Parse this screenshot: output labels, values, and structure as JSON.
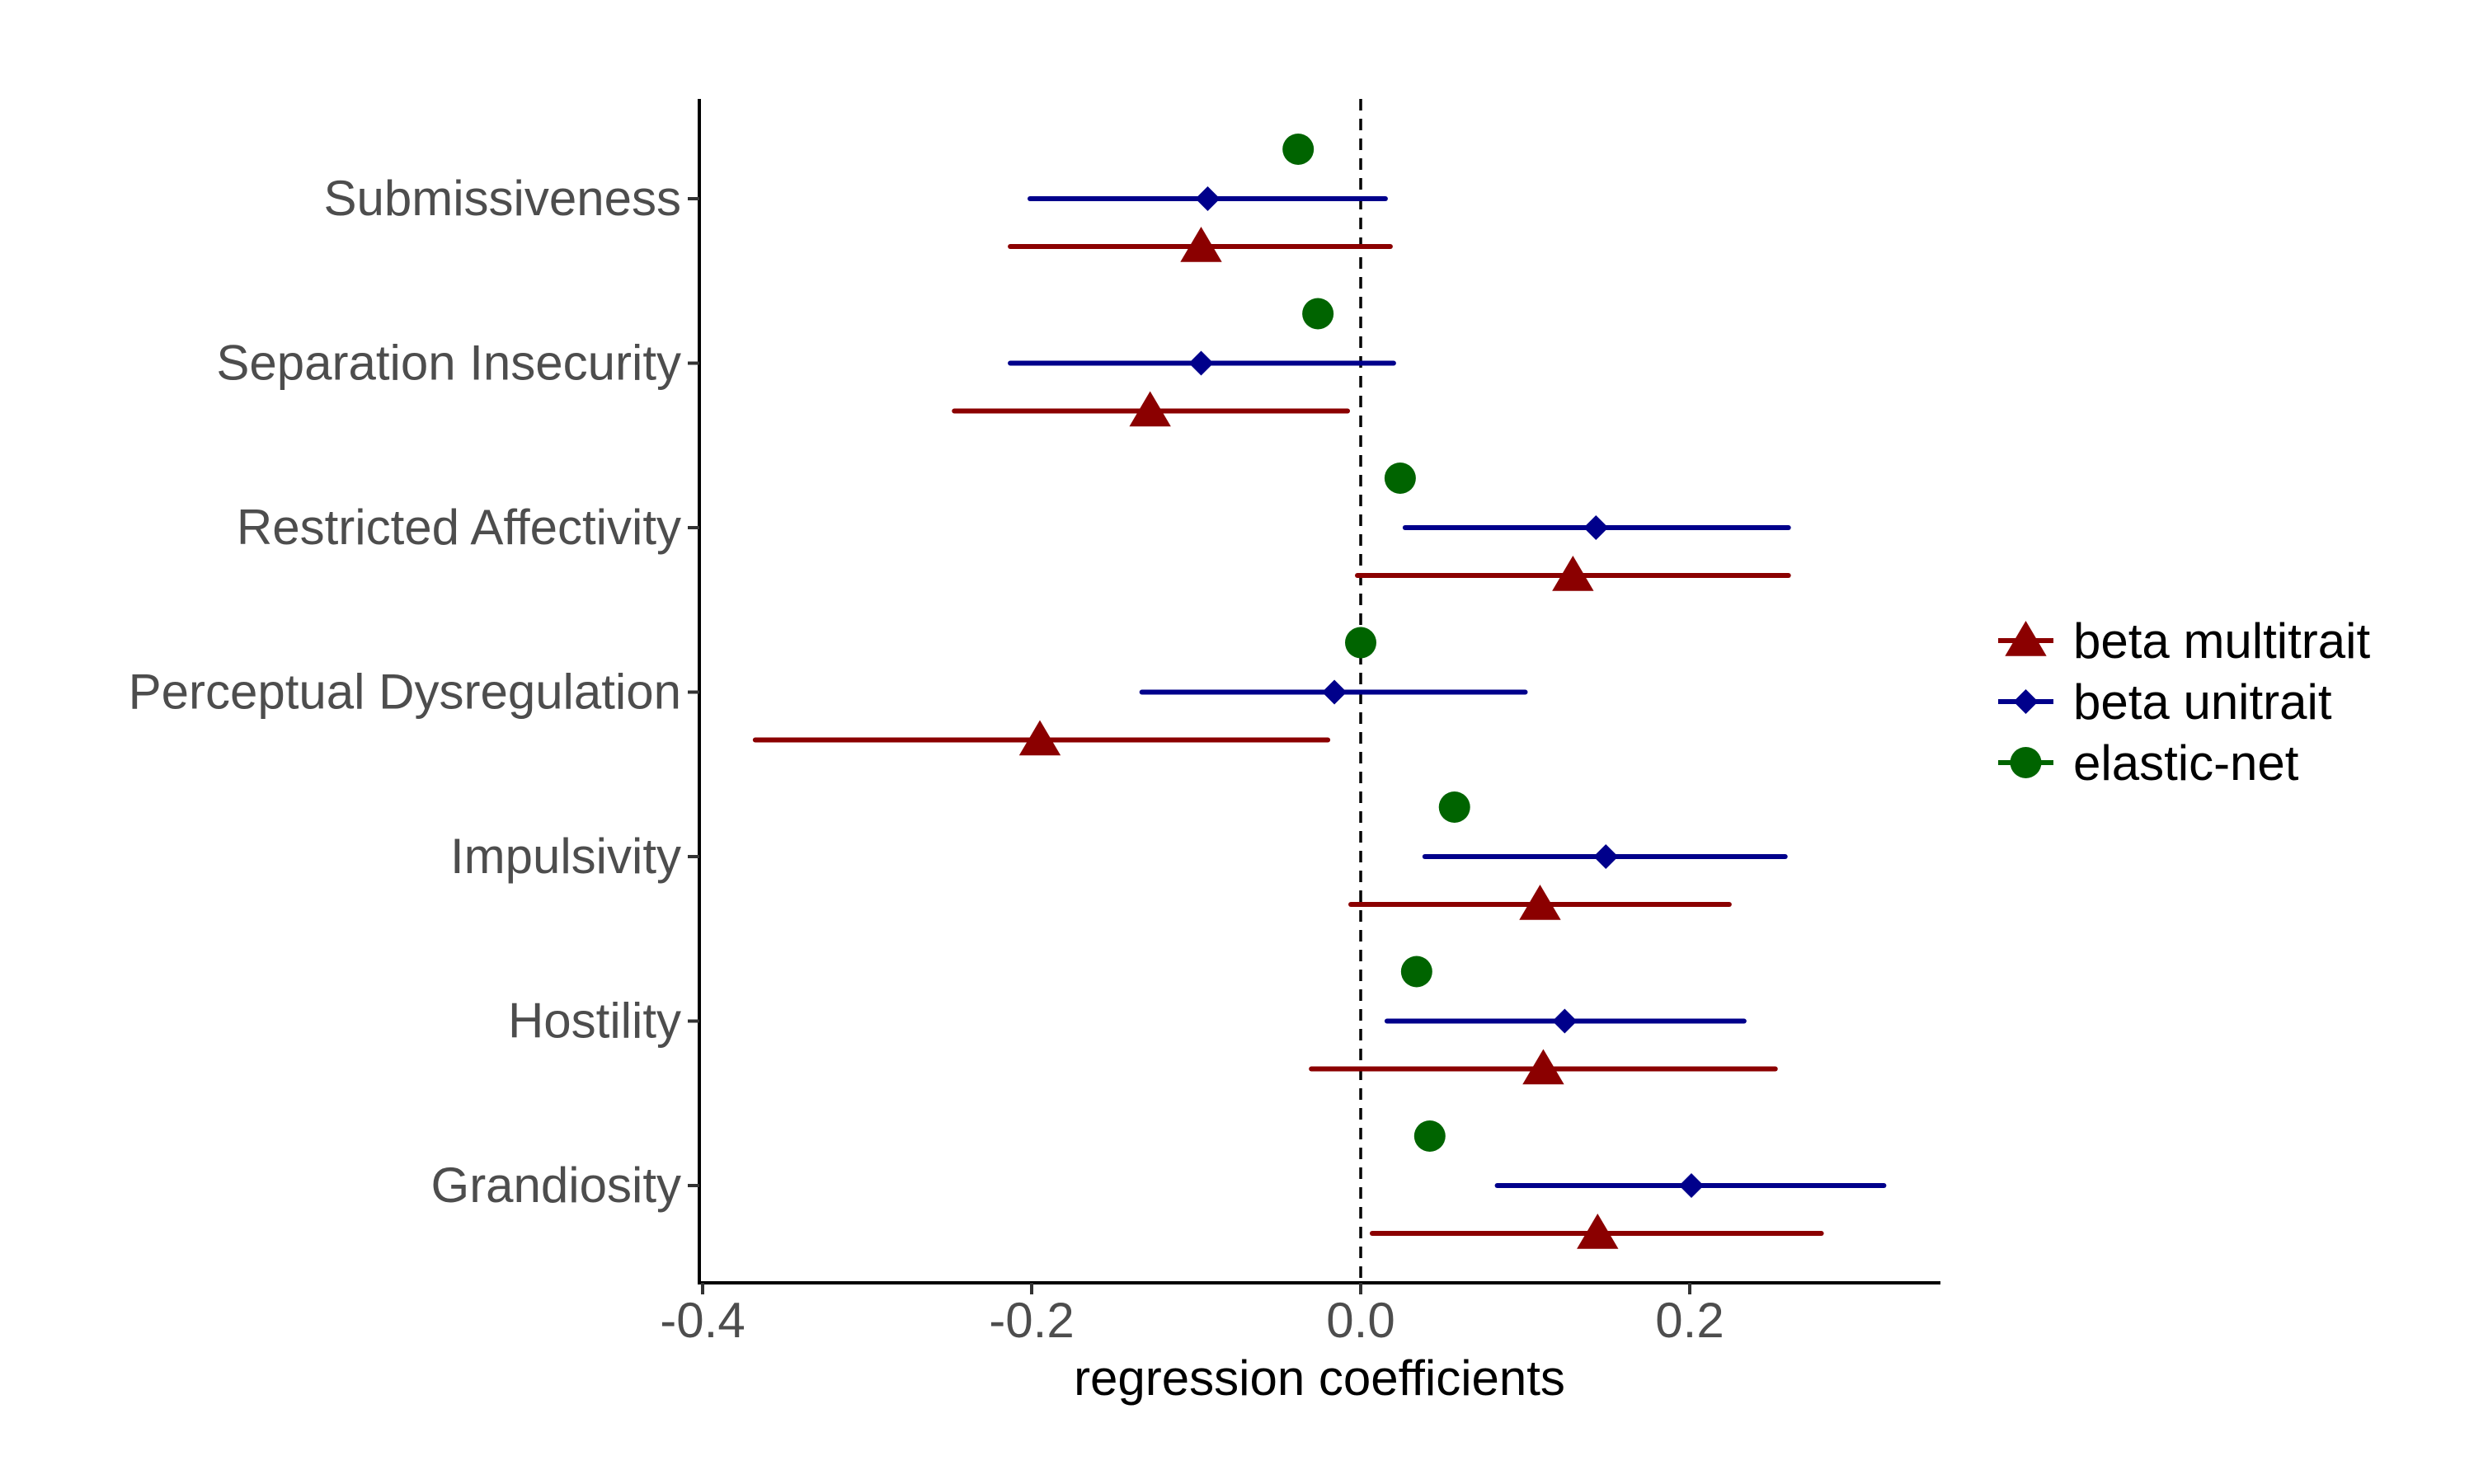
{
  "chart_data": {
    "type": "scatter",
    "subtype": "coefficient-plot-with-intervals",
    "title": "",
    "xlabel": "regression coefficients",
    "ylabel": "",
    "xlim": [
      -0.4,
      0.35
    ],
    "xticks": [
      -0.4,
      -0.2,
      0.0,
      0.2
    ],
    "xtick_labels": [
      "-0.4",
      "-0.2",
      "0.0",
      "0.2"
    ],
    "reference_line": {
      "x": 0,
      "style": "dashed"
    },
    "grid": false,
    "legend_position": "right",
    "categories": [
      "Submissiveness",
      "Separation Insecurity",
      "Restricted Affectivity",
      "Perceptual Dysregulation",
      "Impulsivity",
      "Hostility",
      "Grandiosity"
    ],
    "series": [
      {
        "name": "beta multitrait",
        "color": "#8b0000",
        "marker": "triangle",
        "estimates": [
          -0.097,
          -0.128,
          0.129,
          -0.195,
          0.109,
          0.111,
          0.144
        ],
        "ci_low": [
          -0.213,
          -0.247,
          -0.002,
          -0.368,
          -0.006,
          -0.03,
          0.007
        ],
        "ci_high": [
          0.018,
          -0.008,
          0.26,
          -0.02,
          0.224,
          0.252,
          0.28
        ]
      },
      {
        "name": "beta unitrait",
        "color": "#00008b",
        "marker": "diamond",
        "estimates": [
          -0.093,
          -0.097,
          0.143,
          -0.016,
          0.149,
          0.124,
          0.201
        ],
        "ci_low": [
          -0.201,
          -0.213,
          0.027,
          -0.133,
          0.039,
          0.016,
          0.083
        ],
        "ci_high": [
          0.015,
          0.02,
          0.26,
          0.1,
          0.258,
          0.233,
          0.318
        ]
      },
      {
        "name": "elastic-net",
        "color": "#006400",
        "marker": "circle",
        "estimates": [
          -0.038,
          -0.026,
          0.024,
          0.0,
          0.057,
          0.034,
          0.042
        ]
      }
    ]
  }
}
